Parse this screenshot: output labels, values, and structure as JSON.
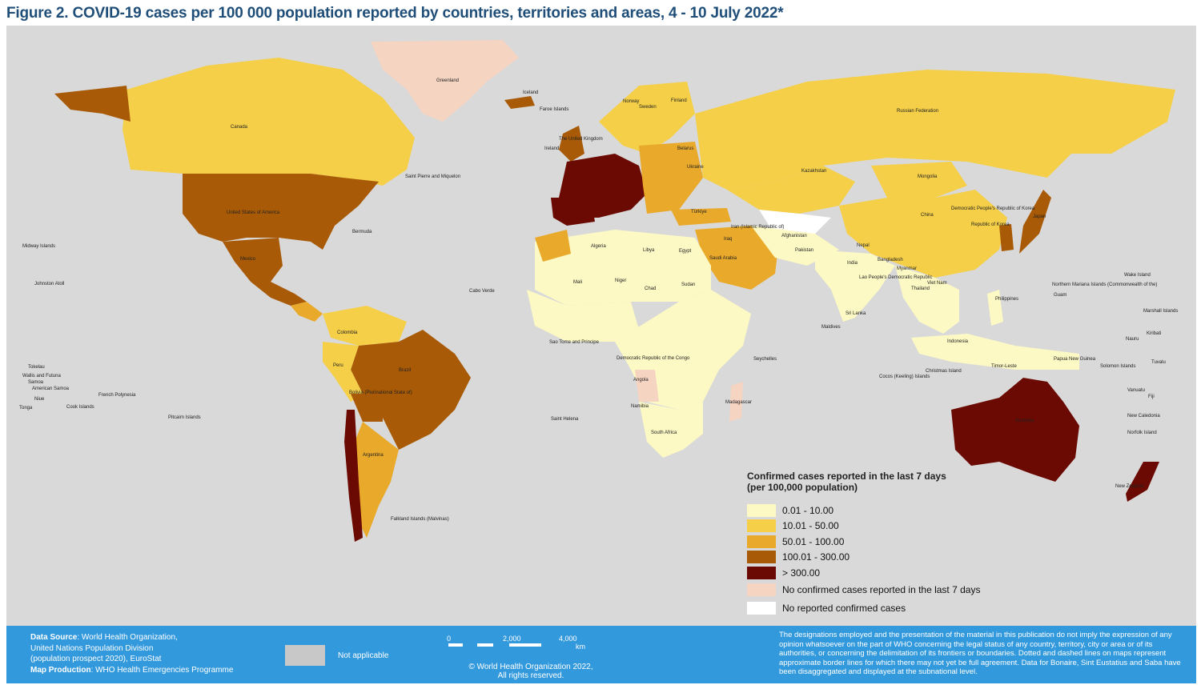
{
  "title": "Figure 2. COVID-19 cases per 100 000 population reported by countries, territories and areas, 4 - 10 July 2022*",
  "colors": {
    "background_map": "#d9d9d9",
    "bin1": "#fdf9c4",
    "bin2": "#f5cf47",
    "bin3": "#e9a92a",
    "bin4": "#a85a06",
    "bin5": "#6b0a02",
    "no_cases_7d": "#f6d4c2",
    "no_reported": "#ffffff",
    "not_applicable": "#c8c8c8",
    "footer": "#3399dd"
  },
  "legend": {
    "title_line1": "Confirmed cases reported in the last 7 days",
    "title_line2": "(per 100,000 population)",
    "items": [
      {
        "label": "0.01 - 10.00",
        "color": "#fdf9c4"
      },
      {
        "label": "10.01 - 50.00",
        "color": "#f5cf47"
      },
      {
        "label": "50.01 - 100.00",
        "color": "#e9a92a"
      },
      {
        "label": "100.01 - 300.00",
        "color": "#a85a06"
      },
      {
        "label": "> 300.00",
        "color": "#6b0a02"
      }
    ],
    "no_cases_label": "No confirmed cases reported in the last 7 days",
    "no_reported_label": "No reported confirmed cases"
  },
  "footer": {
    "source_label": "Data Source",
    "source_text": ": World Health Organization,",
    "source_line2": "United Nations Population Division",
    "source_line3": "(population prospect 2020), EuroStat",
    "production_label": "Map Production",
    "production_text": ": WHO Health Emergencies Programme",
    "not_applicable": "Not applicable",
    "scale_0": "0",
    "scale_2000": "2,000",
    "scale_4000": "4,000",
    "scale_unit": "km",
    "copyright_line1": "© World Health Organization  2022,",
    "copyright_line2": "All rights reserved.",
    "disclaimer": "The designations employed and the presentation of the material in this publication do not imply the expression of any opinion whatsoever on the part of WHO concerning the legal status of any country, territory, city or area or of its authorities, or concerning the delimitation of its frontiers or boundaries. Dotted and dashed lines on maps represent approximate border lines for which there may not yet be full agreement. Data for Bonaire, Sint Eustatius and Saba have been disaggregated and displayed at the subnational level."
  },
  "map_labels": {
    "greenland": "Greenland",
    "canada": "Canada",
    "usa": "United States of America",
    "mexico": "Mexico",
    "iceland": "Iceland",
    "russia": "Russian Federation",
    "kazakhstan": "Kazakhstan",
    "mongolia": "Mongolia",
    "china": "China",
    "brazil": "Brazil",
    "argentina": "Argentina",
    "australia": "Australia",
    "algeria": "Algeria",
    "libya": "Libya",
    "egypt": "Egypt",
    "niger": "Niger",
    "chad": "Chad",
    "sudan": "Sudan",
    "mali": "Mali",
    "saudi": "Saudi Arabia",
    "india": "India",
    "dprk": "Democratic People's Republic of Korea",
    "rok": "Republic of Korea",
    "philippines": "Philippines",
    "indonesia": "Indonesia",
    "png": "Papua New Guinea",
    "nz": "New Zealand",
    "bolivia": "Bolivia (Plurinational State of)",
    "colombia": "Colombia",
    "peru": "Peru",
    "drc": "Democratic Republic of the Congo",
    "angola": "Angola",
    "namibia": "Namibia",
    "south_africa": "South Africa",
    "madagascar": "Madagascar",
    "falkland": "Falkland Islands (Malvinas)",
    "midway": "Midway Islands",
    "johnston": "Johnston Atoll",
    "french_polynesia": "French Polynesia",
    "pitcairn": "Pitcairn Islands",
    "cook": "Cook Islands",
    "tokelau": "Tokelau",
    "wallis": "Wallis and Futuna",
    "samoa": "Samoa",
    "american_samoa": "American Samoa",
    "niue": "Niue",
    "tonga": "Tonga",
    "bermuda": "Bermuda",
    "spm": "Saint Pierre and Miquelon",
    "cabo_verde": "Cabo Verde",
    "sao_tome": "Sao Tome and Principe",
    "saint_helena": "Saint Helena",
    "seychelles": "Seychelles",
    "maldives": "Maldives",
    "sri_lanka": "Sri Lanka",
    "wake": "Wake Island",
    "nmi": "Northern Mariana Islands (Commonwealth of the)",
    "guam": "Guam",
    "marshall": "Marshall Islands",
    "kiribati": "Kiribati",
    "nauru": "Nauru",
    "tuvalu": "Tuvalu",
    "solomon": "Solomon Islands",
    "vanuatu": "Vanuatu",
    "fiji": "Fiji",
    "new_caledonia": "New Caledonia",
    "norfolk": "Norfolk Island",
    "christmas": "Christmas Island",
    "cocos": "Cocos (Keeling) Islands",
    "timor": "Timor-Leste",
    "faroe": "Faroe Islands",
    "norway": "Norway",
    "sweden": "Sweden",
    "finland": "Finland",
    "uk": "The United Kingdom",
    "ireland": "Ireland",
    "lao": "Lao People's Democratic Republic",
    "viet_nam": "Viet Nam",
    "thailand": "Thailand",
    "myanmar": "Myanmar",
    "bangladesh": "Bangladesh",
    "nepal": "Nepal",
    "pakistan": "Pakistan",
    "afghanistan": "Afghanistan",
    "iran": "Iran (Islamic Republic of)",
    "iraq": "Iraq",
    "turkiye": "Türkiye",
    "ukraine": "Ukraine",
    "belarus": "Belarus",
    "japan": "Japan"
  }
}
